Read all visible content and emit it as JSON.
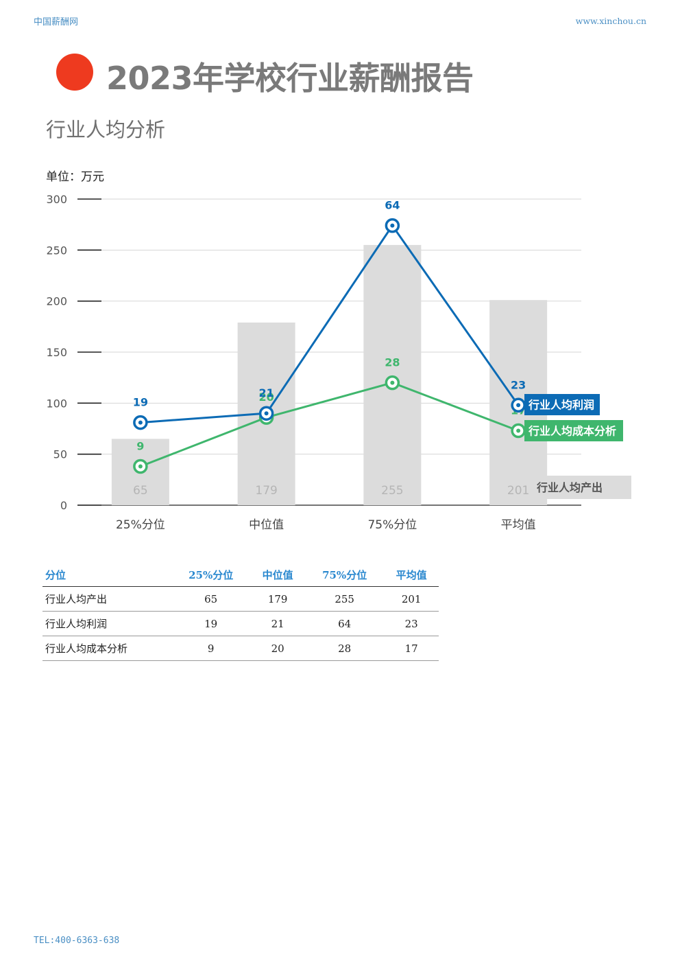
{
  "header": {
    "site_name": "中国薪酬网",
    "site_url": "www.xinchou.cn"
  },
  "title": "2023年学校行业薪酬报告",
  "subtitle": "行业人均分析",
  "unit_label": "单位：万元",
  "colors": {
    "title_dot": "#ee3a1f",
    "title": "#7a7a7a",
    "output_bar": "#dcdcdc",
    "profit_line": "#0c6bb5",
    "cost_line": "#3fb66d",
    "table_header": "#2a88cf",
    "link": "#4a8fc4"
  },
  "chart_data": {
    "type": "bar+line",
    "categories": [
      "25%分位",
      "中位值",
      "75%分位",
      "平均值"
    ],
    "ylim": [
      0,
      300
    ],
    "yticks": [
      0,
      50,
      100,
      150,
      200,
      250,
      300
    ],
    "grid": true,
    "series": [
      {
        "name": "行业人均产出",
        "type": "bar",
        "values": [
          65,
          179,
          255,
          201
        ],
        "plotted": [
          65,
          179,
          255,
          201
        ],
        "labels": [
          "65",
          "179",
          "255",
          "201"
        ]
      },
      {
        "name": "行业人均利润",
        "type": "line",
        "values": [
          19,
          21,
          64,
          23
        ],
        "plotted": [
          81,
          90,
          274,
          98
        ],
        "labels": [
          "19",
          "21",
          "64",
          "23"
        ]
      },
      {
        "name": "行业人均成本分析",
        "type": "line",
        "values": [
          9,
          20,
          28,
          17
        ],
        "plotted": [
          38,
          86,
          120,
          73
        ],
        "labels": [
          "9",
          "20",
          "28",
          "17"
        ]
      }
    ]
  },
  "table": {
    "headers": [
      "分位",
      "25%分位",
      "中位值",
      "75%分位",
      "平均值"
    ],
    "rows": [
      [
        "行业人均产出",
        "65",
        "179",
        "255",
        "201"
      ],
      [
        "行业人均利润",
        "19",
        "21",
        "64",
        "23"
      ],
      [
        "行业人均成本分析",
        "9",
        "20",
        "28",
        "17"
      ]
    ]
  },
  "footer": {
    "tel": "TEL:400-6363-638"
  }
}
